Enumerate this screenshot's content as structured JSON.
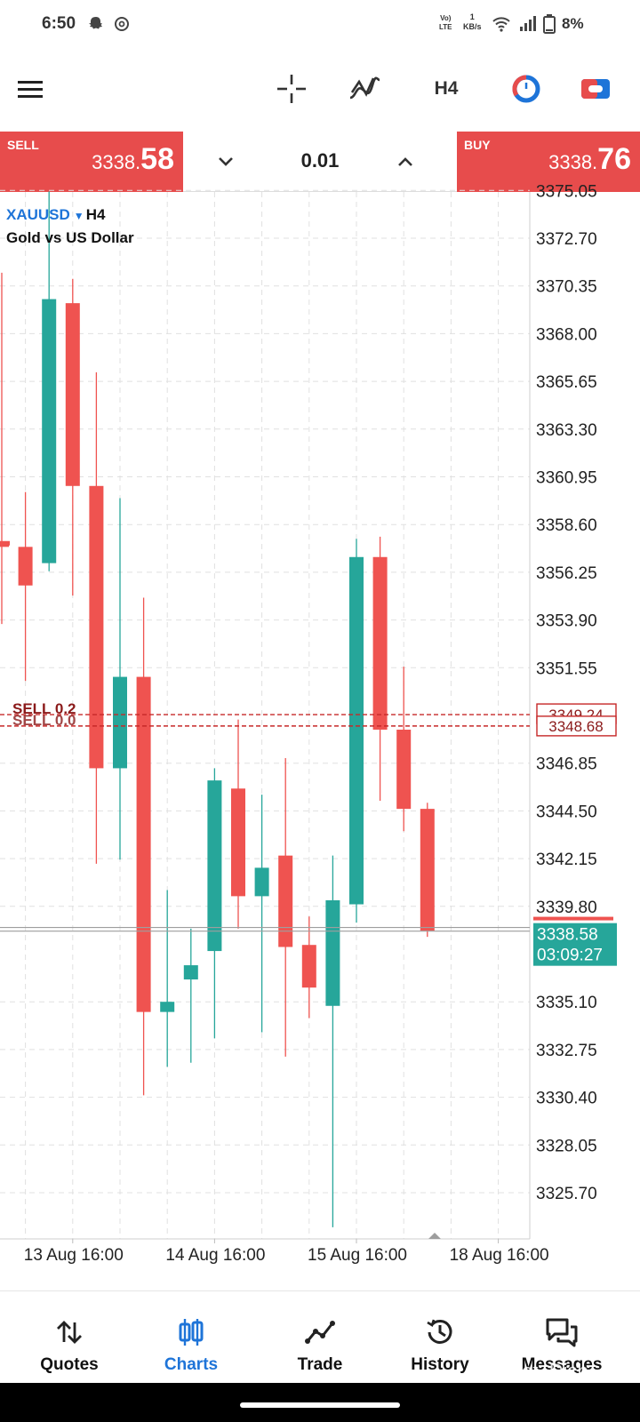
{
  "status_bar": {
    "time": "6:50",
    "net_speed_value": "1",
    "net_speed_unit": "KB/s",
    "volte_top": "Vo)",
    "volte_bottom": "LTE",
    "battery": "8%",
    "icons": [
      "snapchat-icon",
      "threads-icon",
      "volte-icon",
      "wifi-icon",
      "signal-icon",
      "battery-icon"
    ]
  },
  "toolbar": {
    "icons": [
      "menu-icon",
      "crosshair-icon",
      "indicators-icon",
      "timeframe",
      "one-click-trading-icon",
      "chart-type-icon"
    ],
    "timeframe": "H4"
  },
  "trade_bar": {
    "sell_label": "SELL",
    "sell_price_small": "3338.",
    "sell_price_big": "58",
    "buy_label": "BUY",
    "buy_price_small": "3338.",
    "buy_price_big": "76",
    "lot": "0.01"
  },
  "chart": {
    "symbol": "XAUUSD",
    "timeframe": "H4",
    "description": "Gold vs US Dollar",
    "current_price": "3338.58",
    "countdown": "03:09:27",
    "order_line_label_1": "SELL 0.2",
    "order_line_label_2": "SELL 0.0",
    "order_price_1": "3349.24",
    "order_price_2": "3348.68"
  },
  "chart_data": {
    "type": "candlestick",
    "symbol": "XAUUSD",
    "timeframe": "H4",
    "y_ticks": [
      "3375.05",
      "3372.70",
      "3370.35",
      "3368.00",
      "3365.65",
      "3363.30",
      "3360.95",
      "3358.60",
      "3356.25",
      "3353.90",
      "3351.55",
      "3346.85",
      "3344.50",
      "3342.15",
      "3339.80",
      "3335.10",
      "3332.75",
      "3330.40",
      "3328.05",
      "3325.70"
    ],
    "y_range": [
      3323.8,
      3375.1
    ],
    "x_labels": [
      "13 Aug 16:00",
      "14 Aug 16:00",
      "15 Aug 16:00",
      "18 Aug 16:00"
    ],
    "x_label_candle_index": [
      3,
      9,
      15,
      21
    ],
    "candles": [
      {
        "open": 3357.6,
        "high": 3371.0,
        "low": 3353.7,
        "close": 3357.5
      },
      {
        "open": 3357.5,
        "high": 3360.2,
        "low": 3350.9,
        "close": 3355.6
      },
      {
        "open": 3356.7,
        "high": 3375.0,
        "low": 3356.3,
        "close": 3369.7
      },
      {
        "open": 3369.5,
        "high": 3370.7,
        "low": 3355.1,
        "close": 3360.5
      },
      {
        "open": 3360.5,
        "high": 3366.1,
        "low": 3341.9,
        "close": 3346.6
      },
      {
        "open": 3346.6,
        "high": 3359.9,
        "low": 3342.1,
        "close": 3351.1
      },
      {
        "open": 3351.1,
        "high": 3355.0,
        "low": 3330.5,
        "close": 3334.6
      },
      {
        "open": 3334.6,
        "high": 3340.6,
        "low": 3331.9,
        "close": 3335.1
      },
      {
        "open": 3336.2,
        "high": 3338.7,
        "low": 3332.1,
        "close": 3336.9
      },
      {
        "open": 3337.6,
        "high": 3346.6,
        "low": 3333.3,
        "close": 3346.0
      },
      {
        "open": 3345.6,
        "high": 3349.0,
        "low": 3338.7,
        "close": 3340.3
      },
      {
        "open": 3340.3,
        "high": 3345.3,
        "low": 3333.6,
        "close": 3341.7
      },
      {
        "open": 3342.3,
        "high": 3347.1,
        "low": 3332.4,
        "close": 3337.8
      },
      {
        "open": 3337.9,
        "high": 3339.3,
        "low": 3334.3,
        "close": 3335.8
      },
      {
        "open": 3334.9,
        "high": 3342.3,
        "low": 3324.0,
        "close": 3340.1
      },
      {
        "open": 3339.9,
        "high": 3357.9,
        "low": 3339.0,
        "close": 3357.0
      },
      {
        "open": 3357.0,
        "high": 3358.0,
        "low": 3345.0,
        "close": 3348.5
      },
      {
        "open": 3348.5,
        "high": 3351.6,
        "low": 3343.5,
        "close": 3344.6
      },
      {
        "open": 3344.6,
        "high": 3344.9,
        "low": 3338.3,
        "close": 3338.6
      }
    ],
    "bid_line": 3338.58,
    "ask_line": 3338.76,
    "order_lines": [
      3349.24,
      3348.68
    ],
    "colors": {
      "bull": "#26a69a",
      "bear": "#ef5350",
      "grid": "#e0e0e0",
      "order": "#c62828",
      "label_bg": "#26a69a"
    }
  },
  "bottom_nav": {
    "items": [
      {
        "label": "Quotes",
        "icon": "quotes-icon"
      },
      {
        "label": "Charts",
        "icon": "charts-icon",
        "active": true
      },
      {
        "label": "Trade",
        "icon": "trade-icon"
      },
      {
        "label": "History",
        "icon": "history-icon"
      },
      {
        "label": "Messages",
        "icon": "messages-icon"
      }
    ]
  },
  "watermark": "@Sweet_Dish"
}
